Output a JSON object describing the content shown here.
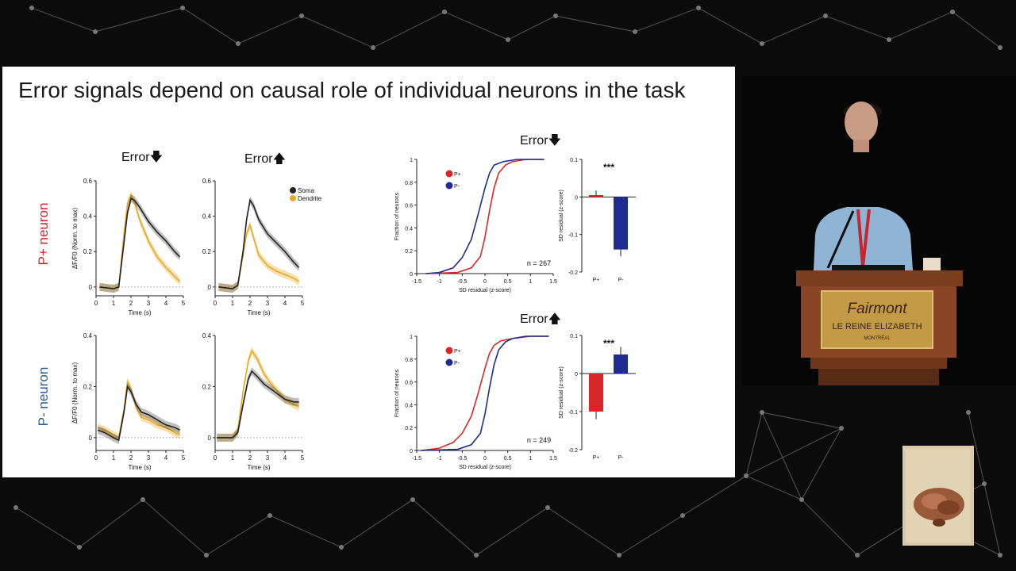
{
  "slide": {
    "title": "Error signals depend on causal role of individual neurons in the task",
    "row_labels": [
      "P+ neuron",
      "P- neuron"
    ],
    "col_headers": {
      "left_down": "Error",
      "left_up": "Error",
      "right_down": "Error",
      "right_up": "Error"
    },
    "colors": {
      "p_plus": "#d9262a",
      "p_minus": "#1f2c8f",
      "soma": "#222222",
      "dendrite": "#e8a923",
      "row_p_plus": "#c0282d",
      "row_p_minus": "#2d5d8a"
    }
  },
  "podium": {
    "brand": "Fairmont",
    "hotel": "LE REINE ELIZABETH",
    "city": "MONTRÉAL"
  },
  "chart_data": [
    {
      "type": "line",
      "panel": "P+ neuron, Error down",
      "xlabel": "Time (s)",
      "ylabel": "ΔF/F0 (Norm. to max)",
      "xlim": [
        0,
        5
      ],
      "ylim": [
        -0.05,
        0.6
      ],
      "xticks": [
        "0",
        "1",
        "2",
        "3",
        "4",
        "5"
      ],
      "yticks": [
        "0",
        "0.2",
        "0.4",
        "0.6"
      ],
      "x": [
        0.2,
        1.0,
        1.3,
        1.6,
        1.8,
        2.0,
        2.2,
        2.5,
        3.0,
        3.5,
        4.0,
        4.5,
        4.8
      ],
      "series": [
        {
          "name": "Soma",
          "values": [
            0.0,
            -0.01,
            0.0,
            0.25,
            0.42,
            0.5,
            0.49,
            0.45,
            0.37,
            0.31,
            0.26,
            0.2,
            0.17
          ]
        },
        {
          "name": "Dendrite",
          "values": [
            0.0,
            -0.01,
            0.0,
            0.3,
            0.47,
            0.52,
            0.48,
            0.38,
            0.26,
            0.17,
            0.11,
            0.06,
            0.03
          ]
        }
      ]
    },
    {
      "type": "line",
      "panel": "P+ neuron, Error up",
      "xlabel": "Time (s)",
      "ylabel": "",
      "xlim": [
        0,
        5
      ],
      "ylim": [
        -0.05,
        0.6
      ],
      "xticks": [
        "0",
        "1",
        "2",
        "3",
        "4",
        "5"
      ],
      "yticks": [
        "0",
        "0.2",
        "0.4",
        "0.6"
      ],
      "legend": [
        "Soma",
        "Dendrite"
      ],
      "x": [
        0.2,
        1.0,
        1.3,
        1.6,
        1.8,
        2.0,
        2.2,
        2.5,
        3.0,
        3.5,
        4.0,
        4.5,
        4.8
      ],
      "series": [
        {
          "name": "Soma",
          "values": [
            0.0,
            -0.01,
            0.01,
            0.2,
            0.38,
            0.49,
            0.46,
            0.38,
            0.3,
            0.25,
            0.2,
            0.14,
            0.11
          ]
        },
        {
          "name": "Dendrite",
          "values": [
            0.0,
            -0.01,
            0.01,
            0.18,
            0.3,
            0.35,
            0.28,
            0.18,
            0.12,
            0.09,
            0.07,
            0.05,
            0.03
          ]
        }
      ]
    },
    {
      "type": "line",
      "panel": "P- neuron, Error down",
      "xlabel": "Time (s)",
      "ylabel": "ΔF/F0 (Norm. to max)",
      "xlim": [
        0,
        5
      ],
      "ylim": [
        -0.05,
        0.4
      ],
      "xticks": [
        "0",
        "1",
        "2",
        "3",
        "4",
        "5"
      ],
      "yticks": [
        "0",
        "0.2",
        "0.4"
      ],
      "x": [
        0.1,
        0.5,
        1.0,
        1.3,
        1.6,
        1.8,
        2.0,
        2.3,
        2.6,
        3.0,
        3.5,
        4.0,
        4.5,
        4.8
      ],
      "series": [
        {
          "name": "Soma",
          "values": [
            0.03,
            0.02,
            0.0,
            -0.01,
            0.1,
            0.2,
            0.18,
            0.13,
            0.1,
            0.09,
            0.07,
            0.05,
            0.04,
            0.03
          ]
        },
        {
          "name": "Dendrite",
          "values": [
            0.04,
            0.03,
            0.01,
            0.0,
            0.11,
            0.22,
            0.19,
            0.12,
            0.08,
            0.07,
            0.05,
            0.04,
            0.02,
            0.01
          ]
        }
      ]
    },
    {
      "type": "line",
      "panel": "P- neuron, Error up",
      "xlabel": "Time (s)",
      "ylabel": "",
      "xlim": [
        0,
        5
      ],
      "ylim": [
        -0.05,
        0.4
      ],
      "xticks": [
        "0",
        "1",
        "2",
        "3",
        "4",
        "5"
      ],
      "yticks": [
        "0",
        "0.2",
        "0.4"
      ],
      "x": [
        0.1,
        0.5,
        1.0,
        1.3,
        1.6,
        1.9,
        2.1,
        2.4,
        2.8,
        3.2,
        3.6,
        4.0,
        4.5,
        4.8
      ],
      "series": [
        {
          "name": "Soma",
          "values": [
            0.0,
            0.0,
            0.0,
            0.02,
            0.13,
            0.23,
            0.26,
            0.24,
            0.21,
            0.19,
            0.17,
            0.15,
            0.14,
            0.14
          ]
        },
        {
          "name": "Dendrite",
          "values": [
            0.0,
            0.0,
            0.0,
            0.03,
            0.18,
            0.3,
            0.34,
            0.31,
            0.25,
            0.21,
            0.18,
            0.15,
            0.13,
            0.12
          ]
        }
      ]
    },
    {
      "type": "line",
      "panel": "CDF Error down",
      "xlabel": "SD residual (z-score)",
      "ylabel": "Fraction of neurons",
      "xlim": [
        -1.5,
        1.5
      ],
      "ylim": [
        0,
        1
      ],
      "xticks": [
        "-1.5",
        "-1",
        "-0.5",
        "0",
        "0.5",
        "1",
        "1.5"
      ],
      "yticks": [
        "0",
        "0.2",
        "0.4",
        "0.6",
        "0.8",
        "1"
      ],
      "legend": [
        "P+",
        "P-"
      ],
      "annotation": "n = 267",
      "series": [
        {
          "name": "P+",
          "x": [
            -1.3,
            -0.6,
            -0.3,
            -0.1,
            0.0,
            0.1,
            0.2,
            0.3,
            0.45,
            0.6,
            0.9,
            1.3
          ],
          "values": [
            0.0,
            0.01,
            0.05,
            0.15,
            0.32,
            0.55,
            0.75,
            0.88,
            0.95,
            0.98,
            1.0,
            1.0
          ]
        },
        {
          "name": "P-",
          "x": [
            -1.3,
            -1.0,
            -0.7,
            -0.5,
            -0.3,
            -0.15,
            0.0,
            0.1,
            0.2,
            0.4,
            0.7,
            1.0,
            1.3
          ],
          "values": [
            0.0,
            0.01,
            0.05,
            0.14,
            0.3,
            0.52,
            0.75,
            0.88,
            0.95,
            0.98,
            1.0,
            1.0,
            1.0
          ]
        }
      ]
    },
    {
      "type": "bar",
      "panel": "Bar Error down",
      "categories": [
        "P+",
        "P-"
      ],
      "values": [
        0.005,
        -0.14
      ],
      "errors": [
        0.012,
        0.018
      ],
      "ylabel": "SD residual (z-score)",
      "ylim": [
        -0.2,
        0.1
      ],
      "yticks": [
        "0.1",
        "0",
        "-0.1",
        "-0.2"
      ],
      "annotation": "***"
    },
    {
      "type": "line",
      "panel": "CDF Error up",
      "xlabel": "SD residual (z-score)",
      "ylabel": "Fraction of neurons",
      "xlim": [
        -1.5,
        1.5
      ],
      "ylim": [
        0,
        1
      ],
      "xticks": [
        "-1.5",
        "-1",
        "-0.5",
        "0",
        "0.5",
        "1",
        "1.5"
      ],
      "yticks": [
        "0",
        "0.2",
        "0.4",
        "0.6",
        "0.8",
        "1"
      ],
      "legend": [
        "P+",
        "P-"
      ],
      "annotation": "n = 249",
      "series": [
        {
          "name": "P+",
          "x": [
            -1.4,
            -1.0,
            -0.7,
            -0.5,
            -0.3,
            -0.15,
            0.0,
            0.1,
            0.2,
            0.35,
            0.6,
            1.0,
            1.4
          ],
          "values": [
            0.0,
            0.02,
            0.07,
            0.15,
            0.3,
            0.5,
            0.72,
            0.85,
            0.92,
            0.96,
            0.98,
            1.0,
            1.0
          ]
        },
        {
          "name": "P-",
          "x": [
            -1.4,
            -0.6,
            -0.3,
            -0.1,
            0.0,
            0.1,
            0.2,
            0.3,
            0.45,
            0.6,
            0.9,
            1.4
          ],
          "values": [
            0.0,
            0.01,
            0.05,
            0.15,
            0.32,
            0.55,
            0.75,
            0.88,
            0.95,
            0.98,
            1.0,
            1.0
          ]
        }
      ]
    },
    {
      "type": "bar",
      "panel": "Bar Error up",
      "categories": [
        "P+",
        "P-"
      ],
      "values": [
        -0.1,
        0.05
      ],
      "errors": [
        0.02,
        0.02
      ],
      "ylabel": "SD residual (z-score)",
      "ylim": [
        -0.2,
        0.1
      ],
      "yticks": [
        "0.1",
        "0",
        "-0.1",
        "-0.2"
      ],
      "annotation": "***"
    }
  ]
}
